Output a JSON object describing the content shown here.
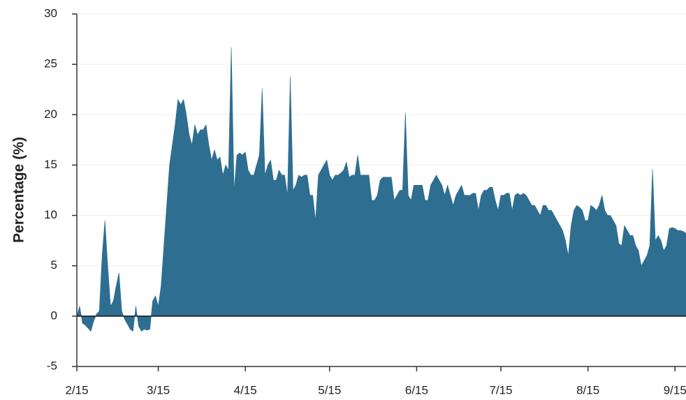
{
  "chart_data": {
    "type": "area",
    "ylabel": "Percentage (%)",
    "categories": [
      "2/15",
      null,
      null,
      null,
      null,
      null,
      null,
      null,
      null,
      null,
      null,
      null,
      null,
      null,
      null,
      null,
      null,
      null,
      null,
      null,
      null,
      null,
      null,
      null,
      null,
      null,
      null,
      null,
      null,
      "3/15",
      null,
      null,
      null,
      null,
      null,
      null,
      null,
      null,
      null,
      null,
      null,
      null,
      null,
      null,
      null,
      null,
      null,
      null,
      null,
      null,
      null,
      null,
      null,
      null,
      null,
      null,
      null,
      null,
      null,
      null,
      "4/15",
      null,
      null,
      null,
      null,
      null,
      null,
      null,
      null,
      null,
      null,
      null,
      null,
      null,
      null,
      null,
      null,
      null,
      null,
      null,
      null,
      null,
      null,
      null,
      null,
      null,
      null,
      null,
      null,
      null,
      "5/15",
      null,
      null,
      null,
      null,
      null,
      null,
      null,
      null,
      null,
      null,
      null,
      null,
      null,
      null,
      null,
      null,
      null,
      null,
      null,
      null,
      null,
      null,
      null,
      null,
      null,
      null,
      null,
      null,
      null,
      null,
      "6/15",
      null,
      null,
      null,
      null,
      null,
      null,
      null,
      null,
      null,
      null,
      null,
      null,
      null,
      null,
      null,
      null,
      null,
      null,
      null,
      null,
      null,
      null,
      null,
      null,
      null,
      null,
      null,
      null,
      null,
      "7/15",
      null,
      null,
      null,
      null,
      null,
      null,
      null,
      null,
      null,
      null,
      null,
      null,
      null,
      null,
      null,
      null,
      null,
      null,
      null,
      null,
      null,
      null,
      null,
      null,
      null,
      null,
      null,
      null,
      null,
      null,
      "8/15",
      null,
      null,
      null,
      null,
      null,
      null,
      null,
      null,
      null,
      null,
      null,
      null,
      null,
      null,
      null,
      null,
      null,
      null,
      null,
      null,
      null,
      null,
      null,
      null,
      null,
      null,
      null,
      null,
      null,
      null,
      "9/15",
      null,
      null,
      null,
      null
    ],
    "values": [
      0,
      1,
      -0.7,
      -0.9,
      -1.2,
      -1.5,
      -0.5,
      0.2,
      0.5,
      6,
      9.5,
      5,
      1,
      1.5,
      3,
      4.3,
      0.5,
      -0.3,
      -0.8,
      -1.3,
      -1.5,
      1,
      -1,
      -1.5,
      -1.3,
      -1.4,
      -1.3,
      1.5,
      2,
      1,
      3,
      7,
      11,
      15,
      17,
      19,
      21.5,
      21,
      21.5,
      20,
      18,
      17,
      19,
      18,
      18.5,
      18.5,
      19,
      17,
      15.5,
      16.5,
      15.5,
      15.8,
      14,
      15,
      14.5,
      26.7,
      12.5,
      16,
      16.2,
      16,
      16.3,
      14.5,
      14,
      14,
      15,
      16,
      22.6,
      14,
      15,
      15.5,
      13.5,
      13.5,
      14.5,
      14,
      14,
      12,
      23.8,
      12.5,
      13,
      14,
      13.8,
      14,
      14,
      12,
      12,
      9.5,
      14,
      14.5,
      15,
      15.5,
      14,
      13.5,
      14,
      14,
      14.2,
      14.5,
      15.3,
      13.8,
      14,
      14,
      16,
      14,
      14,
      14,
      14,
      11.5,
      11.5,
      12,
      13.5,
      13.8,
      13.8,
      13.8,
      13.8,
      11.5,
      12,
      12.5,
      12.5,
      20.2,
      12,
      11.5,
      13,
      13,
      13,
      13,
      11.5,
      11.5,
      13,
      13.5,
      14,
      13.5,
      13,
      12,
      13,
      12,
      11,
      12,
      12.5,
      13,
      12,
      12,
      12,
      12.2,
      12.2,
      10.5,
      12,
      12.5,
      12.5,
      12.8,
      12.8,
      11.5,
      10.5,
      12,
      12,
      12.2,
      12.2,
      10.5,
      12,
      12.2,
      12,
      12.2,
      12,
      11.5,
      11,
      11,
      10.5,
      10,
      11,
      11,
      10.5,
      10.5,
      10,
      9.5,
      9,
      8.5,
      7.5,
      6,
      9,
      10.5,
      11,
      10.8,
      10.5,
      9.5,
      9.5,
      11,
      10.8,
      10.5,
      11,
      12,
      10.5,
      10,
      10,
      9.5,
      9,
      7.2,
      7,
      9,
      8.5,
      8,
      8,
      7,
      6.5,
      5,
      5.5,
      6,
      7,
      14.6,
      7.5,
      8,
      7.5,
      6.5,
      7,
      8.7,
      8.8,
      8.7,
      8.5,
      8.5,
      8.4,
      8.2
    ],
    "color": "#2e6e91",
    "ylim": [
      -5,
      30
    ],
    "yticks": [
      -5,
      0,
      5,
      10,
      15,
      20,
      25,
      30
    ],
    "grid": true
  }
}
